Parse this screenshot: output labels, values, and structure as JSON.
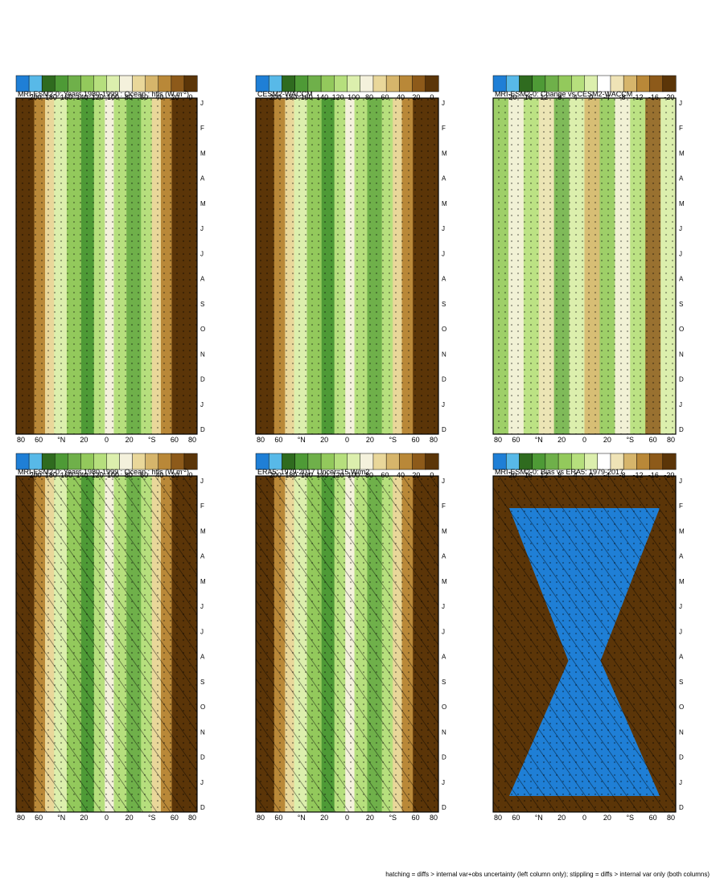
{
  "figure": {
    "footnote": "hatching = diffs > internal var+obs uncertainty (left column only); stippling = diffs > internal var only (both columns)"
  },
  "chart_data": [
    {
      "type": "heatmap",
      "title": "MRI-ESM2-0: Years 1980-1999 : Ocean : hfls (W m",
      "title_sup": "-2",
      "title_end": ")",
      "x_ticks": [
        "J",
        "F",
        "M",
        "A",
        "M",
        "J",
        "J",
        "A",
        "S",
        "O",
        "N",
        "D",
        "J",
        "D"
      ],
      "y_ticks": [
        "80",
        "60",
        "°N",
        "20",
        "0",
        "20",
        "°S",
        "60",
        "80"
      ],
      "colorbar": [
        "200",
        "180",
        "160",
        "140",
        "120",
        "100",
        "80",
        "60",
        "40",
        "20",
        "0"
      ],
      "hatching": true
    },
    {
      "type": "heatmap",
      "title": "ERA5: 1979-2017 Uncer=15 W/m2",
      "x_ticks": [
        "J",
        "F",
        "M",
        "A",
        "M",
        "J",
        "J",
        "A",
        "S",
        "O",
        "N",
        "D",
        "J",
        "D"
      ],
      "y_ticks": [
        "80",
        "60",
        "°N",
        "20",
        "0",
        "20",
        "°S",
        "60",
        "80"
      ],
      "colorbar": [
        "200",
        "180",
        "160",
        "140",
        "120",
        "100",
        "80",
        "60",
        "40",
        "20",
        "0"
      ],
      "hatching": true
    },
    {
      "type": "heatmap",
      "title": "MRI-ESM2-0: Bias vs ERA5: 1979-2017",
      "x_ticks": [
        "J",
        "F",
        "M",
        "A",
        "M",
        "J",
        "J",
        "A",
        "S",
        "O",
        "N",
        "D",
        "J",
        "D"
      ],
      "y_ticks": [
        "80",
        "60",
        "°N",
        "20",
        "0",
        "20",
        "°S",
        "60",
        "80"
      ],
      "colorbar": [
        "20",
        "16",
        "12",
        "8",
        "4",
        "0",
        "-4",
        "-8",
        "-12",
        "-16",
        "-20"
      ],
      "hatching": true
    },
    {
      "type": "heatmap",
      "title": "MRI-ESM2-0: Years 1980-1999 : Ocean : hfls (W m",
      "title_sup": "-2",
      "title_end": ")",
      "x_ticks": [
        "J",
        "F",
        "M",
        "A",
        "M",
        "J",
        "J",
        "A",
        "S",
        "O",
        "N",
        "D",
        "J",
        "D"
      ],
      "y_ticks": [
        "80",
        "60",
        "°N",
        "20",
        "0",
        "20",
        "°S",
        "60",
        "80"
      ],
      "colorbar": [
        "200",
        "180",
        "160",
        "140",
        "120",
        "100",
        "80",
        "60",
        "40",
        "20",
        "0"
      ],
      "hatching": false
    },
    {
      "type": "heatmap",
      "title": "CESM2-WACCM",
      "x_ticks": [
        "J",
        "F",
        "M",
        "A",
        "M",
        "J",
        "J",
        "A",
        "S",
        "O",
        "N",
        "D",
        "J",
        "D"
      ],
      "y_ticks": [
        "80",
        "60",
        "°N",
        "20",
        "0",
        "20",
        "°S",
        "60",
        "80"
      ],
      "colorbar": [
        "200",
        "180",
        "160",
        "140",
        "120",
        "100",
        "80",
        "60",
        "40",
        "20",
        "0"
      ],
      "hatching": false
    },
    {
      "type": "heatmap",
      "title": "MRI-ESM2-0: Change vs CESM2-WACCM",
      "x_ticks": [
        "J",
        "F",
        "M",
        "A",
        "M",
        "J",
        "J",
        "A",
        "S",
        "O",
        "N",
        "D",
        "J",
        "D"
      ],
      "y_ticks": [
        "80",
        "60",
        "°N",
        "20",
        "0",
        "20",
        "°S",
        "60",
        "80"
      ],
      "colorbar": [
        "20",
        "16",
        "12",
        "8",
        "4",
        "0",
        "-4",
        "-8",
        "-12",
        "-16",
        "-20"
      ],
      "hatching": false
    }
  ]
}
